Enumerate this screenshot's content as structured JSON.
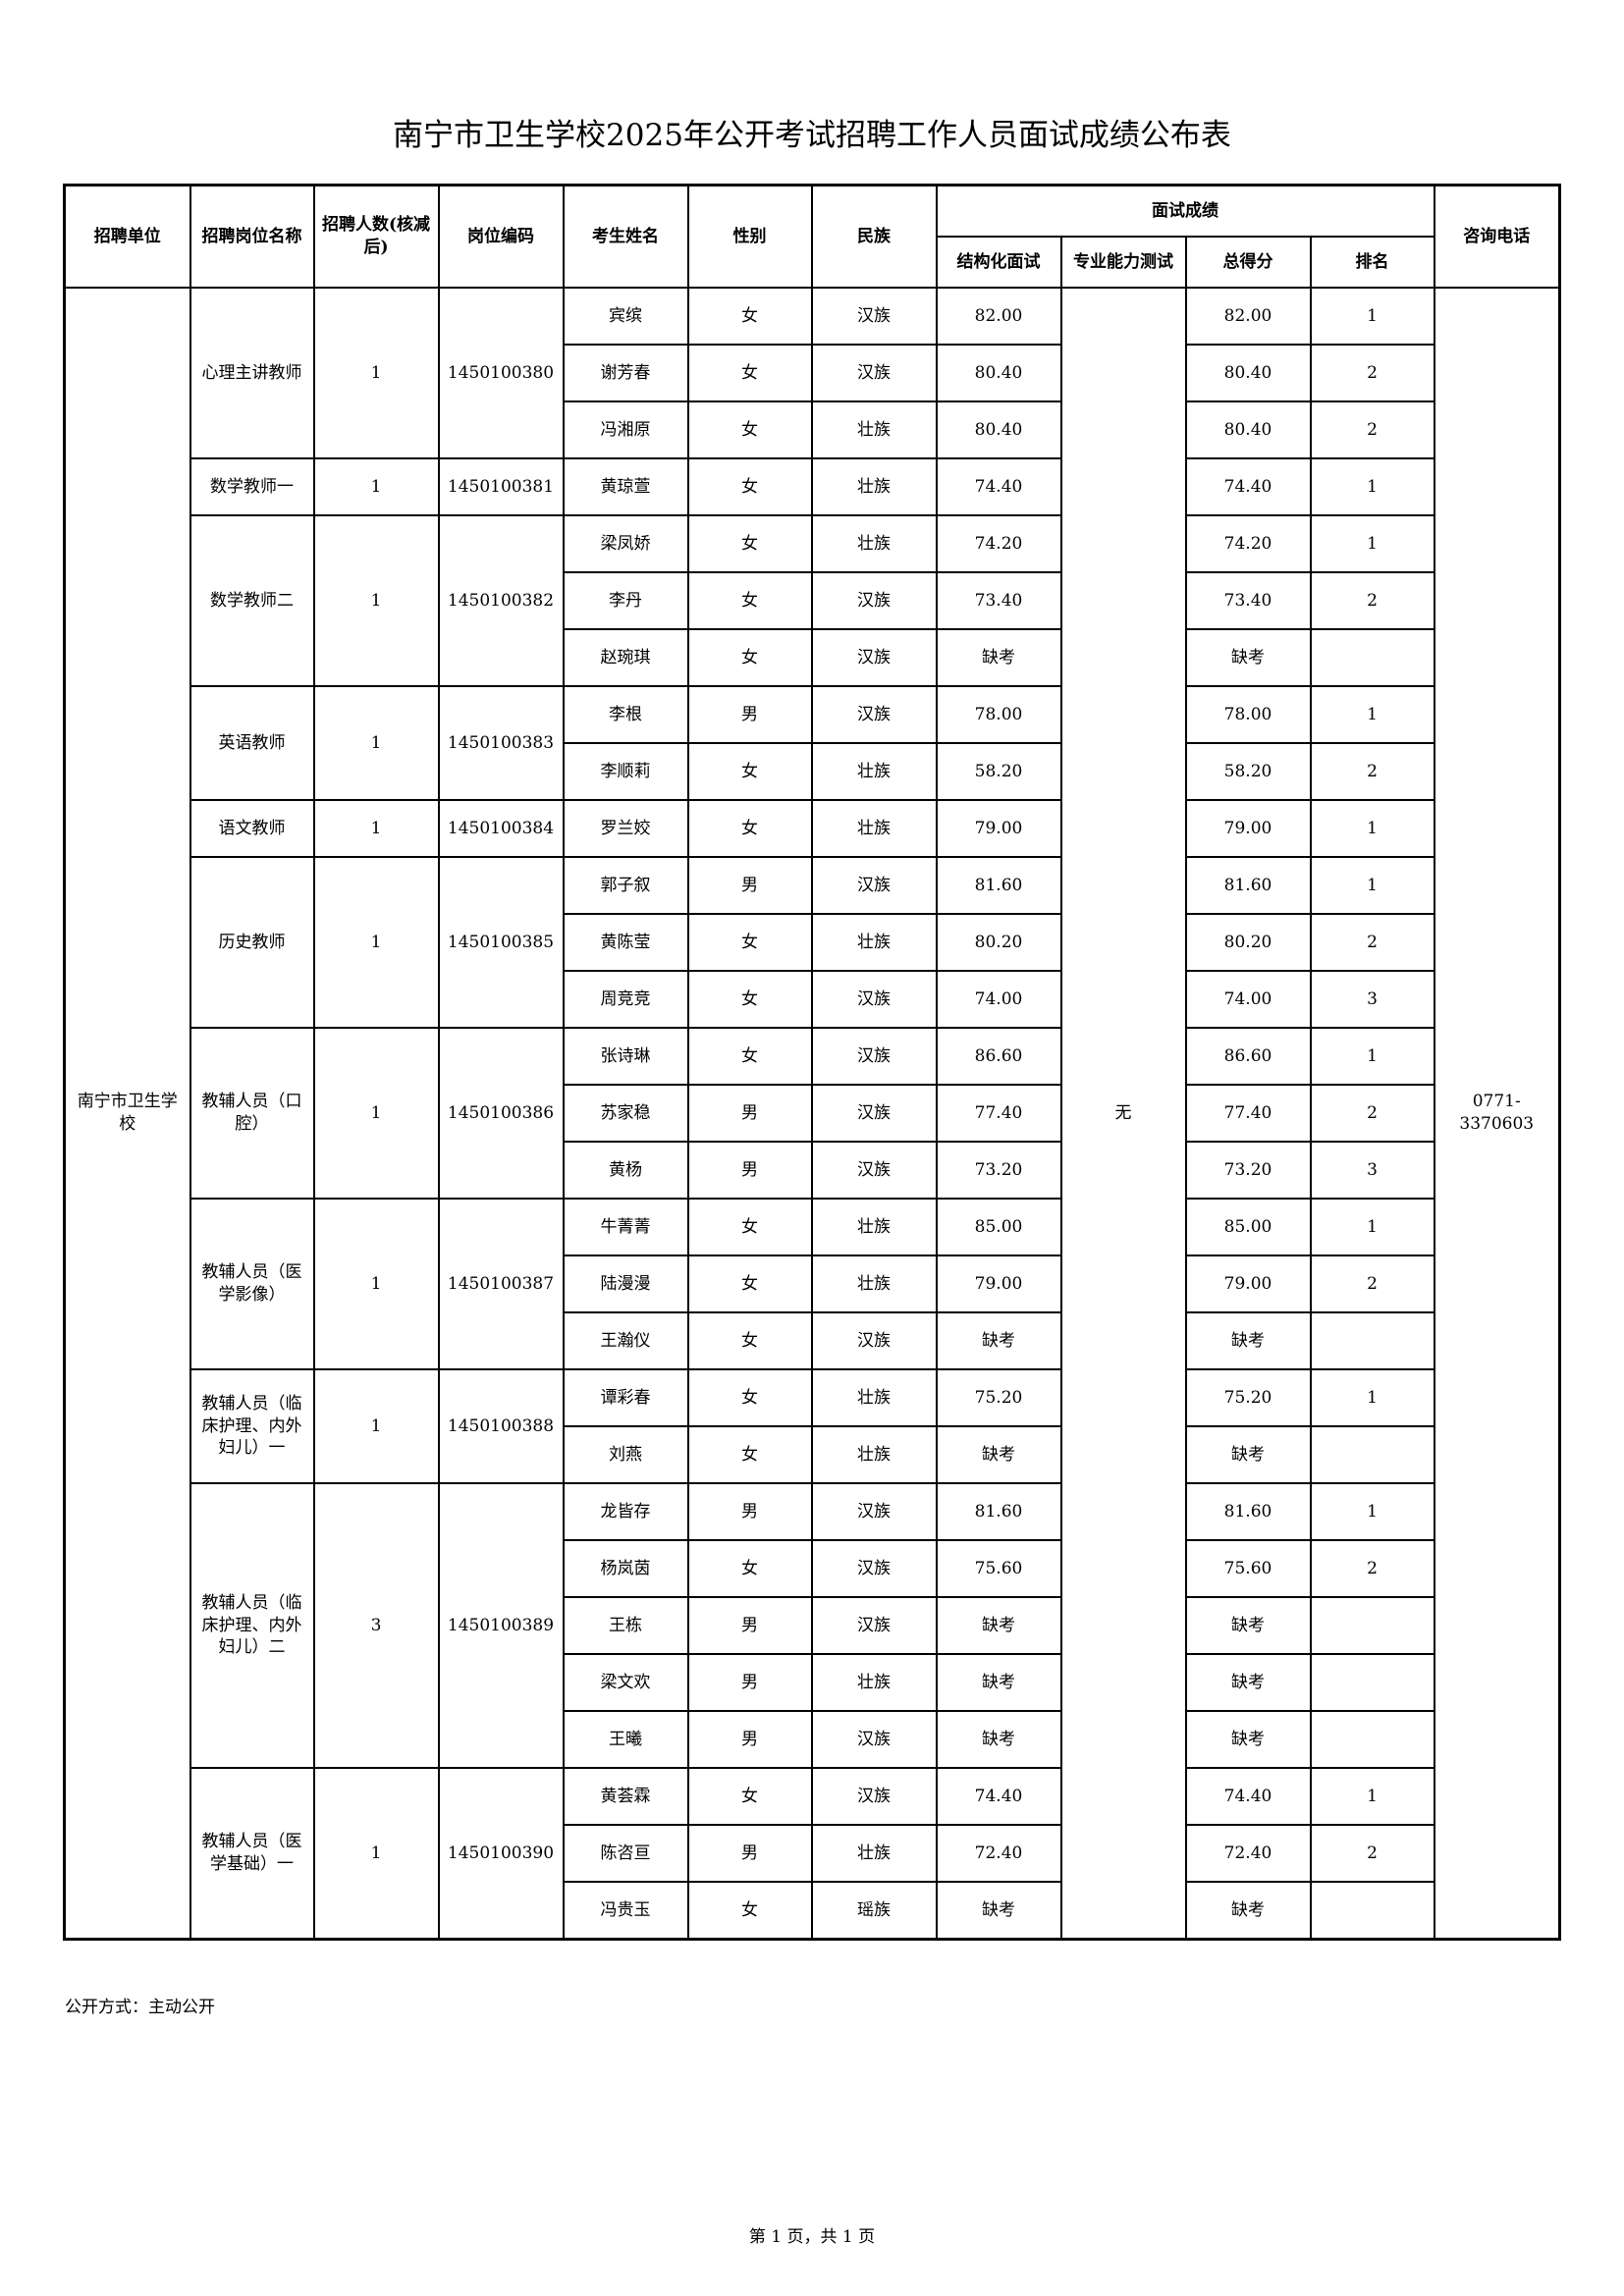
{
  "title": "南宁市卫生学校2025年公开考试招聘工作人员面试成绩公布表",
  "headers": {
    "unit": "招聘单位",
    "post_name": "招聘岗位名称",
    "quota": "招聘人数(核减后)",
    "post_code": "岗位编码",
    "name": "考生姓名",
    "gender": "性别",
    "ethnicity": "民族",
    "interview_group": "面试成绩",
    "structured": "结构化面试",
    "professional": "专业能力测试",
    "total": "总得分",
    "rank": "排名",
    "phone": "咨询电话"
  },
  "unit": "南宁市卫生学校",
  "professional_test": "无",
  "phone": "0771-3370603",
  "posts": [
    {
      "name": "心理主讲教师",
      "quota": "1",
      "code": "1450100380",
      "candidates": [
        {
          "name": "宾缤",
          "gender": "女",
          "ethnicity": "汉族",
          "structured": "82.00",
          "total": "82.00",
          "rank": "1"
        },
        {
          "name": "谢芳春",
          "gender": "女",
          "ethnicity": "汉族",
          "structured": "80.40",
          "total": "80.40",
          "rank": "2"
        },
        {
          "name": "冯湘原",
          "gender": "女",
          "ethnicity": "壮族",
          "structured": "80.40",
          "total": "80.40",
          "rank": "2"
        }
      ]
    },
    {
      "name": "数学教师一",
      "quota": "1",
      "code": "1450100381",
      "candidates": [
        {
          "name": "黄琼萱",
          "gender": "女",
          "ethnicity": "壮族",
          "structured": "74.40",
          "total": "74.40",
          "rank": "1"
        }
      ]
    },
    {
      "name": "数学教师二",
      "quota": "1",
      "code": "1450100382",
      "candidates": [
        {
          "name": "梁凤娇",
          "gender": "女",
          "ethnicity": "壮族",
          "structured": "74.20",
          "total": "74.20",
          "rank": "1"
        },
        {
          "name": "李丹",
          "gender": "女",
          "ethnicity": "汉族",
          "structured": "73.40",
          "total": "73.40",
          "rank": "2"
        },
        {
          "name": "赵琬琪",
          "gender": "女",
          "ethnicity": "汉族",
          "structured": "缺考",
          "total": "缺考",
          "rank": ""
        }
      ]
    },
    {
      "name": "英语教师",
      "quota": "1",
      "code": "1450100383",
      "candidates": [
        {
          "name": "李根",
          "gender": "男",
          "ethnicity": "汉族",
          "structured": "78.00",
          "total": "78.00",
          "rank": "1"
        },
        {
          "name": "李顺莉",
          "gender": "女",
          "ethnicity": "壮族",
          "structured": "58.20",
          "total": "58.20",
          "rank": "2"
        }
      ]
    },
    {
      "name": "语文教师",
      "quota": "1",
      "code": "1450100384",
      "candidates": [
        {
          "name": "罗兰姣",
          "gender": "女",
          "ethnicity": "壮族",
          "structured": "79.00",
          "total": "79.00",
          "rank": "1"
        }
      ]
    },
    {
      "name": "历史教师",
      "quota": "1",
      "code": "1450100385",
      "candidates": [
        {
          "name": "郭子叙",
          "gender": "男",
          "ethnicity": "汉族",
          "structured": "81.60",
          "total": "81.60",
          "rank": "1"
        },
        {
          "name": "黄陈莹",
          "gender": "女",
          "ethnicity": "壮族",
          "structured": "80.20",
          "total": "80.20",
          "rank": "2"
        },
        {
          "name": "周竞竞",
          "gender": "女",
          "ethnicity": "汉族",
          "structured": "74.00",
          "total": "74.00",
          "rank": "3"
        }
      ]
    },
    {
      "name": "教辅人员（口腔）",
      "quota": "1",
      "code": "1450100386",
      "candidates": [
        {
          "name": "张诗琳",
          "gender": "女",
          "ethnicity": "汉族",
          "structured": "86.60",
          "total": "86.60",
          "rank": "1"
        },
        {
          "name": "苏家稳",
          "gender": "男",
          "ethnicity": "汉族",
          "structured": "77.40",
          "total": "77.40",
          "rank": "2"
        },
        {
          "name": "黄杨",
          "gender": "男",
          "ethnicity": "汉族",
          "structured": "73.20",
          "total": "73.20",
          "rank": "3"
        }
      ]
    },
    {
      "name": "教辅人员（医学影像）",
      "quota": "1",
      "code": "1450100387",
      "candidates": [
        {
          "name": "牛菁菁",
          "gender": "女",
          "ethnicity": "壮族",
          "structured": "85.00",
          "total": "85.00",
          "rank": "1"
        },
        {
          "name": "陆漫漫",
          "gender": "女",
          "ethnicity": "壮族",
          "structured": "79.00",
          "total": "79.00",
          "rank": "2"
        },
        {
          "name": "王瀚仪",
          "gender": "女",
          "ethnicity": "汉族",
          "structured": "缺考",
          "total": "缺考",
          "rank": ""
        }
      ]
    },
    {
      "name": "教辅人员（临床护理、内外妇儿）一",
      "quota": "1",
      "code": "1450100388",
      "candidates": [
        {
          "name": "谭彩春",
          "gender": "女",
          "ethnicity": "壮族",
          "structured": "75.20",
          "total": "75.20",
          "rank": "1"
        },
        {
          "name": "刘燕",
          "gender": "女",
          "ethnicity": "壮族",
          "structured": "缺考",
          "total": "缺考",
          "rank": ""
        }
      ]
    },
    {
      "name": "教辅人员（临床护理、内外妇儿）二",
      "quota": "3",
      "code": "1450100389",
      "candidates": [
        {
          "name": "龙皆存",
          "gender": "男",
          "ethnicity": "汉族",
          "structured": "81.60",
          "total": "81.60",
          "rank": "1"
        },
        {
          "name": "杨岚茵",
          "gender": "女",
          "ethnicity": "汉族",
          "structured": "75.60",
          "total": "75.60",
          "rank": "2"
        },
        {
          "name": "王栋",
          "gender": "男",
          "ethnicity": "汉族",
          "structured": "缺考",
          "total": "缺考",
          "rank": ""
        },
        {
          "name": "梁文欢",
          "gender": "男",
          "ethnicity": "壮族",
          "structured": "缺考",
          "total": "缺考",
          "rank": ""
        },
        {
          "name": "王曦",
          "gender": "男",
          "ethnicity": "汉族",
          "structured": "缺考",
          "total": "缺考",
          "rank": ""
        }
      ]
    },
    {
      "name": "教辅人员（医学基础）一",
      "quota": "1",
      "code": "1450100390",
      "candidates": [
        {
          "name": "黄荟霖",
          "gender": "女",
          "ethnicity": "汉族",
          "structured": "74.40",
          "total": "74.40",
          "rank": "1"
        },
        {
          "name": "陈咨亘",
          "gender": "男",
          "ethnicity": "壮族",
          "structured": "72.40",
          "total": "72.40",
          "rank": "2"
        },
        {
          "name": "冯贵玉",
          "gender": "女",
          "ethnicity": "瑶族",
          "structured": "缺考",
          "total": "缺考",
          "rank": ""
        }
      ]
    }
  ],
  "disclosure": "公开方式：主动公开",
  "page_footer": "第 1 页，共 1 页"
}
